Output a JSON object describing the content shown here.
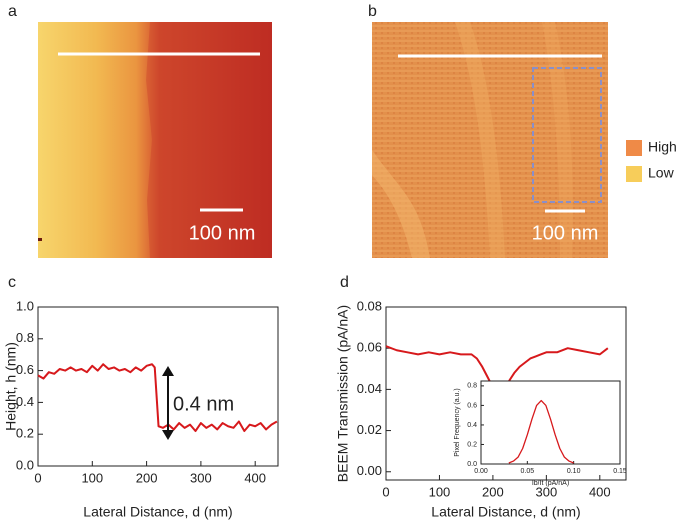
{
  "panel_labels": [
    "a",
    "b",
    "c",
    "d"
  ],
  "scale_bars": [
    "100 nm",
    "100 nm"
  ],
  "legend": {
    "items": [
      {
        "label": "High",
        "color": "#ef8a47"
      },
      {
        "label": "Low",
        "color": "#f7cd5a"
      }
    ]
  },
  "chart_data": [
    {
      "type": "line",
      "color": "#d7191c",
      "xlabel": "Lateral Distance, d (nm)",
      "ylabel": "Height, h (nm)",
      "annotation": "0.4 nm",
      "x": [
        0,
        10,
        20,
        30,
        40,
        50,
        60,
        70,
        80,
        90,
        100,
        110,
        120,
        130,
        140,
        150,
        160,
        170,
        180,
        190,
        200,
        210,
        215,
        222,
        230,
        240,
        250,
        260,
        270,
        280,
        290,
        300,
        310,
        320,
        330,
        340,
        350,
        360,
        370,
        380,
        390,
        400,
        410,
        420,
        430,
        440
      ],
      "values": [
        0.57,
        0.55,
        0.59,
        0.58,
        0.61,
        0.6,
        0.62,
        0.6,
        0.61,
        0.59,
        0.63,
        0.6,
        0.64,
        0.61,
        0.62,
        0.6,
        0.61,
        0.59,
        0.62,
        0.6,
        0.63,
        0.64,
        0.62,
        0.25,
        0.24,
        0.26,
        0.23,
        0.27,
        0.24,
        0.26,
        0.22,
        0.27,
        0.24,
        0.26,
        0.23,
        0.27,
        0.25,
        0.24,
        0.28,
        0.22,
        0.26,
        0.25,
        0.27,
        0.23,
        0.26,
        0.28
      ],
      "xlim": [
        0,
        442
      ],
      "xticks": [
        0,
        100,
        200,
        300,
        400
      ],
      "ylim": [
        0,
        1.0
      ],
      "yticks": [
        {
          "value": 0,
          "label": "0.0"
        },
        0.2,
        0.4,
        0.6,
        0.8,
        {
          "value": 1,
          "label": "1.0"
        }
      ]
    },
    {
      "type": "line",
      "color": "#d7191c",
      "xlabel": "Lateral Distance, d (nm)",
      "ylabel": "BEEM Transmission (pA/nA)",
      "x": [
        0,
        20,
        40,
        60,
        80,
        100,
        120,
        140,
        160,
        170,
        180,
        190,
        200,
        210,
        220,
        230,
        240,
        250,
        260,
        270,
        280,
        290,
        300,
        320,
        340,
        360,
        380,
        400,
        415
      ],
      "values": [
        0.061,
        0.059,
        0.058,
        0.057,
        0.058,
        0.057,
        0.058,
        0.057,
        0.057,
        0.055,
        0.051,
        0.046,
        0.041,
        0.037,
        0.039,
        0.044,
        0.048,
        0.051,
        0.053,
        0.055,
        0.056,
        0.057,
        0.058,
        0.058,
        0.06,
        0.059,
        0.058,
        0.057,
        0.06
      ],
      "xlim": [
        0,
        449
      ],
      "xticks": [
        0,
        100,
        200,
        300,
        400
      ],
      "ylim": [
        -0.004,
        0.08
      ],
      "yticks": [
        {
          "value": 0,
          "label": "0.00"
        },
        0.02,
        0.04,
        0.06,
        0.08
      ]
    },
    {
      "type": "line",
      "color": "#d7191c",
      "xlabel": "Ib/It (pA/nA)",
      "ylabel": "Pixel Frequency (a.u.)",
      "x": [
        0.03,
        0.035,
        0.04,
        0.045,
        0.05,
        0.055,
        0.06,
        0.065,
        0.07,
        0.075,
        0.08,
        0.085,
        0.09,
        0.095,
        0.1
      ],
      "values": [
        0.01,
        0.03,
        0.07,
        0.16,
        0.3,
        0.46,
        0.6,
        0.65,
        0.6,
        0.46,
        0.3,
        0.16,
        0.07,
        0.03,
        0.01
      ],
      "xlim": [
        0,
        0.15
      ],
      "xticks": [
        {
          "value": 0,
          "label": "0.00"
        },
        0.05,
        {
          "value": 0.1,
          "label": "0.10"
        },
        0.15
      ],
      "ylim": [
        0,
        0.85
      ],
      "yticks": [
        {
          "value": 0,
          "label": "0.0"
        },
        0.2,
        0.4,
        0.6,
        0.8
      ]
    }
  ]
}
